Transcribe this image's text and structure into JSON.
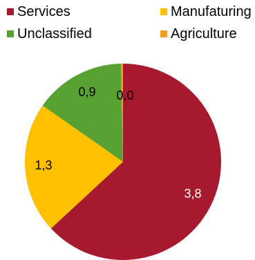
{
  "chart_data": {
    "type": "pie",
    "title": "",
    "legend_position": "top",
    "slices": [
      {
        "name": "Services",
        "value": 3.8,
        "label": "3,8",
        "color": "#a6192e",
        "label_color": "#ffffff"
      },
      {
        "name": "Manufaturing",
        "value": 1.3,
        "label": "1,3",
        "color": "#ffc000",
        "label_color": "#000000"
      },
      {
        "name": "Unclassified",
        "value": 0.9,
        "label": "0,9",
        "color": "#56a131",
        "label_color": "#000000"
      },
      {
        "name": "Agriculture",
        "value": 0.02,
        "label": "0,0",
        "color": "#f39c1d",
        "label_color": "#000000"
      }
    ],
    "legend_order": [
      "Services",
      "Manufaturing",
      "Unclassified",
      "Agriculture"
    ],
    "start_angle": "12 o'clock",
    "direction": "clockwise"
  }
}
